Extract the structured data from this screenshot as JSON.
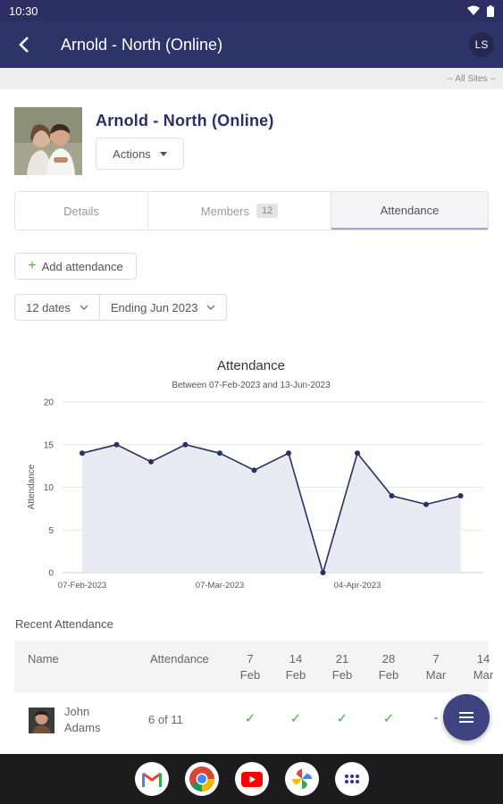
{
  "status_bar": {
    "time": "10:30"
  },
  "app_bar": {
    "title": "Arnold - North (Online)",
    "user_initials": "LS"
  },
  "sites_filter": "-- All Sites --",
  "group": {
    "name": "Arnold - North (Online)",
    "actions_label": "Actions"
  },
  "tabs": [
    {
      "label": "Details"
    },
    {
      "label": "Members",
      "badge": "12"
    },
    {
      "label": "Attendance",
      "selected": true
    }
  ],
  "add_attendance_label": "Add attendance",
  "filters": {
    "dates": "12 dates",
    "ending": "Ending Jun 2023"
  },
  "chart_data": {
    "type": "line",
    "title": "Attendance",
    "subtitle": "Between 07-Feb-2023 and 13-Jun-2023",
    "ylabel": "Attendance",
    "xlabel": "",
    "ylim": [
      0,
      20
    ],
    "yticks": [
      0,
      5,
      10,
      15,
      20
    ],
    "x": [
      "07-Feb-2023",
      "14-Feb-2023",
      "21-Feb-2023",
      "28-Feb-2023",
      "07-Mar-2023",
      "14-Mar-2023",
      "21-Mar-2023",
      "28-Mar-2023",
      "04-Apr-2023",
      "11-Apr-2023",
      "18-Apr-2023",
      "25-Apr-2023"
    ],
    "xtick_labels": [
      "07-Feb-2023",
      "07-Mar-2023",
      "04-Apr-2023"
    ],
    "values": [
      14,
      15,
      13,
      15,
      14,
      12,
      14,
      0,
      14,
      9,
      8,
      9
    ],
    "grid": true,
    "line_color": "#2b2f63",
    "fill_color": "#e9ebf2"
  },
  "recent_attendance": {
    "title": "Recent Attendance",
    "columns": {
      "name": "Name",
      "attendance": "Attendance",
      "dates": [
        {
          "day": "7",
          "month": "Feb"
        },
        {
          "day": "14",
          "month": "Feb"
        },
        {
          "day": "21",
          "month": "Feb"
        },
        {
          "day": "28",
          "month": "Feb"
        },
        {
          "day": "7",
          "month": "Mar"
        },
        {
          "day": "14",
          "month": "Mar"
        }
      ]
    },
    "rows": [
      {
        "first_name": "John",
        "last_name": "Adams",
        "attendance": "6 of 11",
        "checks": [
          "✓",
          "✓",
          "✓",
          "✓"
        ],
        "partial": "-"
      }
    ]
  },
  "colors": {
    "primary": "#2f3468",
    "accent_green": "#4caf50",
    "fab": "#3d4481"
  },
  "dock": [
    "gmail-icon",
    "chrome-icon",
    "youtube-icon",
    "photos-icon",
    "app-drawer-icon"
  ]
}
